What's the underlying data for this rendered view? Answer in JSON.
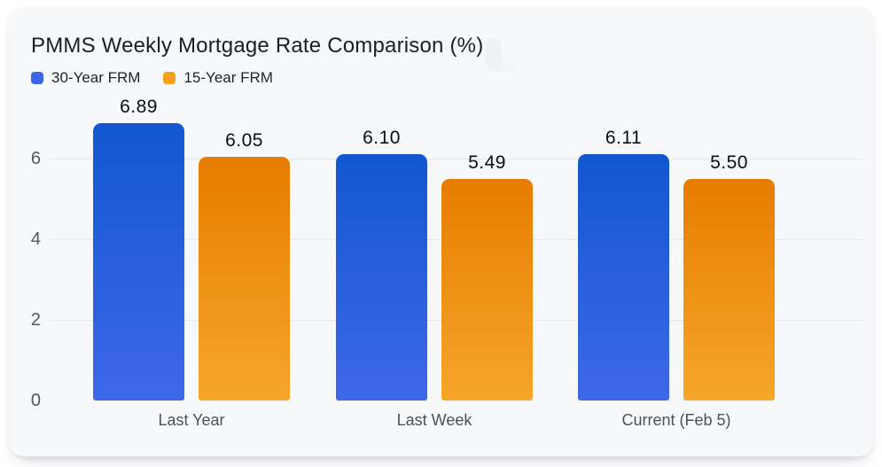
{
  "card": {
    "title": "PMMS Weekly Mortgage Rate Comparison (%)"
  },
  "legend": [
    {
      "label": "30-Year FRM",
      "color": "#3b66e8"
    },
    {
      "label": "15-Year FRM",
      "color": "#f5a11d"
    }
  ],
  "chart_data": {
    "type": "bar",
    "title": "PMMS Weekly Mortgage Rate Comparison (%)",
    "categories": [
      "Last Year",
      "Last Week",
      "Current (Feb 5)"
    ],
    "series": [
      {
        "name": "30-Year FRM",
        "values": [
          6.89,
          6.1,
          6.11
        ],
        "labels": [
          "6.89",
          "6.10",
          "6.11"
        ],
        "color_top": "#1257d0",
        "color_bottom": "#3e68e8"
      },
      {
        "name": "15-Year FRM",
        "values": [
          6.05,
          5.49,
          5.5
        ],
        "labels": [
          "6.05",
          "5.49",
          "5.50"
        ],
        "color_top": "#e67c00",
        "color_bottom": "#f6a62a"
      }
    ],
    "xlabel": "",
    "ylabel": "",
    "yticks": [
      0,
      2,
      4,
      6
    ],
    "ylim": [
      0,
      7.5
    ],
    "grid": true,
    "legend_position": "top-left",
    "value_labels_shown": true
  }
}
